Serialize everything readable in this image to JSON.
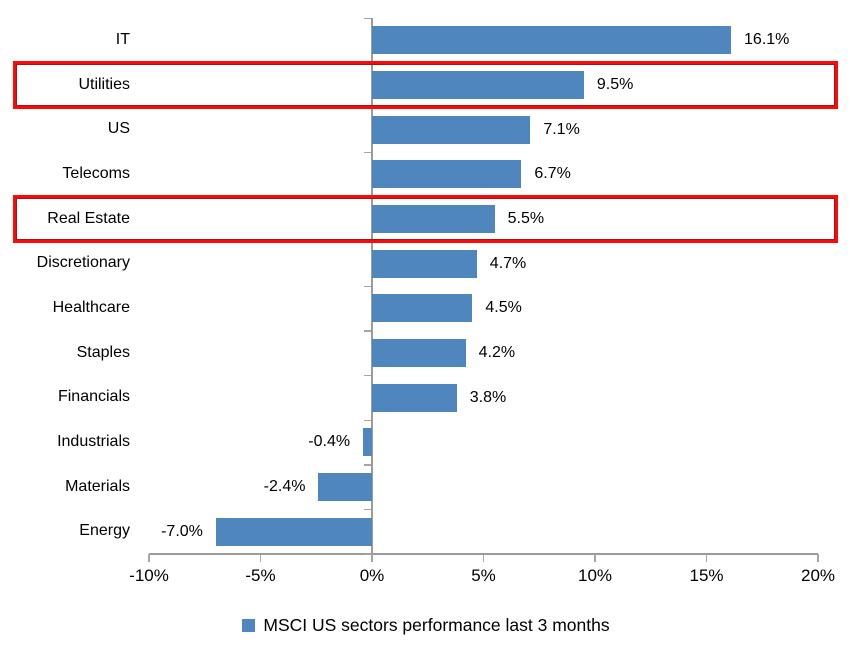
{
  "chart_data": {
    "type": "bar",
    "orientation": "horizontal",
    "title": "",
    "xlabel": "",
    "ylabel": "",
    "categories": [
      "IT",
      "Utilities",
      "US",
      "Telecoms",
      "Real Estate",
      "Discretionary",
      "Healthcare",
      "Staples",
      "Financials",
      "Industrials",
      "Materials",
      "Energy"
    ],
    "values": [
      16.1,
      9.5,
      7.1,
      6.7,
      5.5,
      4.7,
      4.5,
      4.2,
      3.8,
      -0.4,
      -2.4,
      -7.0
    ],
    "labels": [
      "16.1%",
      "9.5%",
      "7.1%",
      "6.7%",
      "5.5%",
      "4.7%",
      "4.5%",
      "4.2%",
      "3.8%",
      "-0.4%",
      "-2.4%",
      "-7.0%"
    ],
    "highlighted_categories": [
      "Utilities",
      "Real Estate"
    ],
    "xlim": [
      -10,
      20
    ],
    "x_ticks": [
      "-10%",
      "-5%",
      "0%",
      "5%",
      "10%",
      "15%",
      "20%"
    ],
    "x_tick_values": [
      -10,
      -5,
      0,
      5,
      10,
      15,
      20
    ],
    "grid": "off",
    "legend": "MSCI US sectors performance last 3 months",
    "legend_position": "bottom-center",
    "colors": {
      "bar": "#4E86BD",
      "highlight_border": "#FB0B07",
      "axis": "#9B9B9B",
      "text": "#000000"
    }
  }
}
